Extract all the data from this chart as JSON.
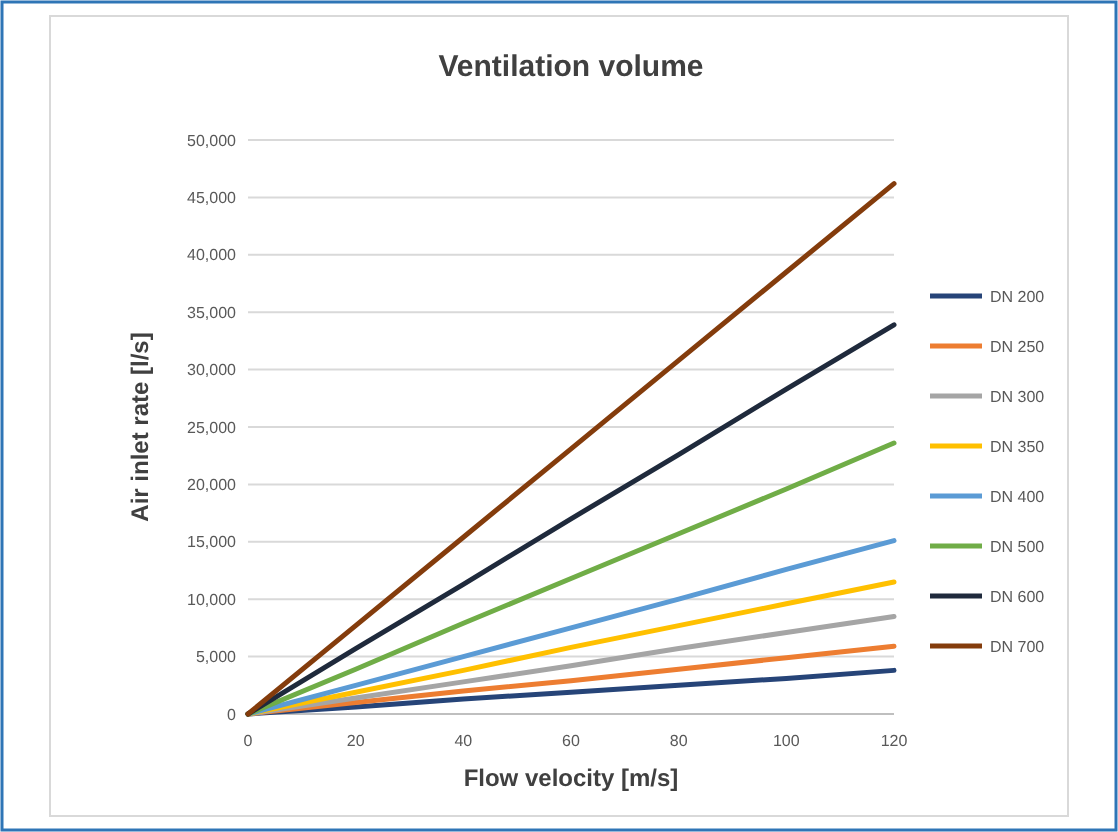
{
  "chart_data": {
    "type": "line",
    "title": "Ventilation volume",
    "xlabel": "Flow velocity [m/s]",
    "ylabel": "Air inlet rate [l/s]",
    "x": [
      0,
      20,
      40,
      60,
      80,
      100,
      120
    ],
    "xlim": [
      0,
      120
    ],
    "xticks": [
      0,
      20,
      40,
      60,
      80,
      100,
      120
    ],
    "ylim": [
      0,
      50000
    ],
    "yticks": [
      0,
      {
        "value": 5000,
        "label": "5,000"
      },
      {
        "value": 10000,
        "label": "10,000"
      },
      {
        "value": 15000,
        "label": "15,000"
      },
      {
        "value": 20000,
        "label": "20,000"
      },
      {
        "value": 25000,
        "label": "25,000"
      },
      {
        "value": 30000,
        "label": "30,000"
      },
      {
        "value": 35000,
        "label": "35,000"
      },
      {
        "value": 40000,
        "label": "40,000"
      },
      {
        "value": 45000,
        "label": "45,000"
      },
      {
        "value": 50000,
        "label": "50,000"
      }
    ],
    "grid": "y",
    "legend": "right",
    "marker": "none",
    "line_style": "solid",
    "series": [
      {
        "name": "DN 200",
        "color": "#264478",
        "values": [
          0,
          600,
          1300,
          1900,
          2500,
          3100,
          3800
        ]
      },
      {
        "name": "DN 250",
        "color": "#ed7d31",
        "values": [
          0,
          1000,
          2000,
          2900,
          3900,
          4900,
          5900
        ]
      },
      {
        "name": "DN 300",
        "color": "#a5a5a5",
        "values": [
          0,
          1400,
          2800,
          4200,
          5700,
          7100,
          8500
        ]
      },
      {
        "name": "DN 350",
        "color": "#ffc000",
        "values": [
          0,
          1900,
          3800,
          5800,
          7700,
          9600,
          11500
        ]
      },
      {
        "name": "DN 400",
        "color": "#5b9bd5",
        "values": [
          0,
          2500,
          5000,
          7500,
          10000,
          12600,
          15100
        ]
      },
      {
        "name": "DN 500",
        "color": "#70ad47",
        "values": [
          0,
          3900,
          7900,
          11800,
          15700,
          19600,
          23600
        ]
      },
      {
        "name": "DN 600",
        "color": "#1f2a3c",
        "values": [
          0,
          5700,
          11300,
          17000,
          22600,
          28300,
          33900
        ]
      },
      {
        "name": "DN 700",
        "color": "#843c0c",
        "values": [
          0,
          7700,
          15400,
          23100,
          30800,
          38500,
          46200
        ]
      }
    ]
  }
}
